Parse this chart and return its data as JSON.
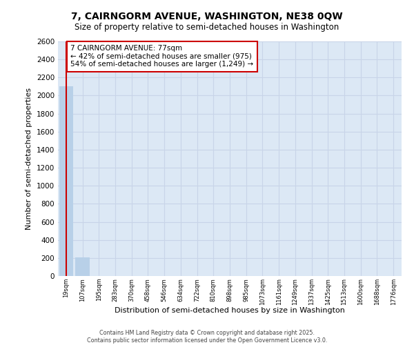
{
  "title_line1": "7, CAIRNGORM AVENUE, WASHINGTON, NE38 0QW",
  "title_line2": "Size of property relative to semi-detached houses in Washington",
  "xlabel": "Distribution of semi-detached houses by size in Washington",
  "ylabel": "Number of semi-detached properties",
  "bin_labels": [
    "19sqm",
    "107sqm",
    "195sqm",
    "283sqm",
    "370sqm",
    "458sqm",
    "546sqm",
    "634sqm",
    "722sqm",
    "810sqm",
    "898sqm",
    "985sqm",
    "1073sqm",
    "1161sqm",
    "1249sqm",
    "1337sqm",
    "1425sqm",
    "1513sqm",
    "1600sqm",
    "1688sqm",
    "1776sqm"
  ],
  "bar_values": [
    2100,
    210,
    0,
    0,
    0,
    0,
    0,
    0,
    0,
    0,
    0,
    0,
    0,
    0,
    0,
    0,
    0,
    0,
    0,
    0,
    0
  ],
  "bar_color": "#b8d0e8",
  "bar_edge_color": "#b8d0e8",
  "grid_color": "#c8d4e8",
  "background_color": "#dce8f5",
  "ylim": [
    0,
    2600
  ],
  "yticks": [
    0,
    200,
    400,
    600,
    800,
    1000,
    1200,
    1400,
    1600,
    1800,
    2000,
    2200,
    2400,
    2600
  ],
  "annotation_text_line1": "7 CAIRNGORM AVENUE: 77sqm",
  "annotation_text_line2": "← 42% of semi-detached houses are smaller (975)",
  "annotation_text_line3": "54% of semi-detached houses are larger (1,249) →",
  "annotation_box_color": "#ffffff",
  "annotation_box_edge": "#cc0000",
  "red_line_color": "#cc0000",
  "footer_line1": "Contains HM Land Registry data © Crown copyright and database right 2025.",
  "footer_line2": "Contains public sector information licensed under the Open Government Licence v3.0."
}
